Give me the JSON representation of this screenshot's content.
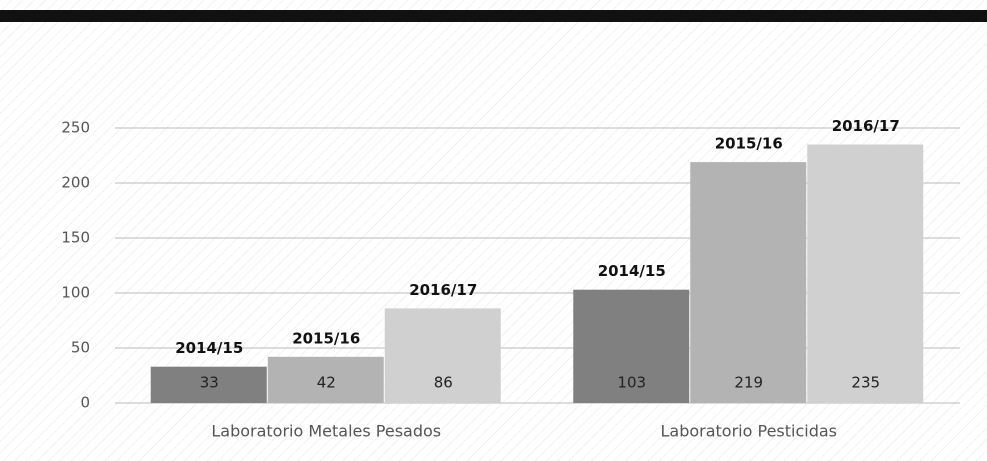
{
  "chart_data": {
    "type": "bar",
    "categories": [
      "Laboratorio Metales Pesados",
      "Laboratorio Pesticidas"
    ],
    "series": [
      {
        "name": "2014/15",
        "color": "#808080",
        "values": [
          33,
          103
        ]
      },
      {
        "name": "2015/16",
        "color": "#b3b3b3",
        "values": [
          42,
          219
        ]
      },
      {
        "name": "2016/17",
        "color": "#d0d0d0",
        "values": [
          86,
          235
        ]
      }
    ],
    "ylim": [
      0,
      300
    ],
    "yticks": [
      0,
      50,
      100,
      150,
      200,
      250
    ],
    "grid": true
  }
}
